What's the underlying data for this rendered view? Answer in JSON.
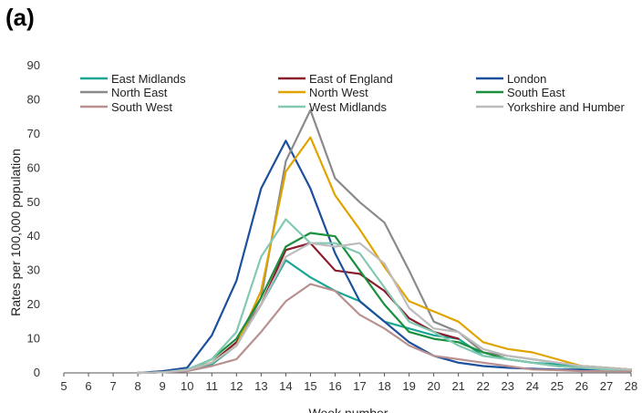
{
  "panel_label": "(a)",
  "chart_data": {
    "type": "line",
    "xlabel": "Week number",
    "ylabel": "Rates per 100,000 population",
    "xlim": [
      5,
      28
    ],
    "ylim": [
      0,
      90
    ],
    "x_ticks": [
      5,
      6,
      7,
      8,
      9,
      10,
      11,
      12,
      13,
      14,
      15,
      16,
      17,
      18,
      19,
      20,
      21,
      22,
      23,
      24,
      25,
      26,
      27,
      28
    ],
    "y_ticks": [
      0,
      10,
      20,
      30,
      40,
      50,
      60,
      70,
      80,
      90
    ],
    "grid": false,
    "legend_position": "top",
    "series": [
      {
        "name": "East Midlands",
        "color": "#1aa694",
        "x": [
          8,
          9,
          10,
          11,
          12,
          13,
          14,
          15,
          16,
          17,
          18,
          19,
          20,
          21,
          22,
          23,
          24,
          25,
          26,
          27,
          28
        ],
        "y": [
          0,
          0.2,
          0.8,
          2.5,
          8,
          20,
          33,
          28,
          24,
          21,
          15,
          13,
          11,
          10,
          5,
          4,
          3,
          2.5,
          2,
          1.5,
          1
        ]
      },
      {
        "name": "East of England",
        "color": "#8b1a2b",
        "x": [
          8,
          9,
          10,
          11,
          12,
          13,
          14,
          15,
          16,
          17,
          18,
          19,
          20,
          21
        ],
        "y": [
          0,
          0.2,
          0.8,
          3,
          9,
          20,
          36,
          38,
          30,
          29,
          24,
          16,
          12,
          10
        ]
      },
      {
        "name": "London",
        "color": "#1c4f9c",
        "x": [
          8,
          9,
          10,
          11,
          12,
          13,
          14,
          15,
          16,
          17,
          18,
          19,
          20,
          21,
          22,
          23,
          24,
          25,
          26,
          27,
          28
        ],
        "y": [
          0,
          0.5,
          1.5,
          11,
          27,
          54,
          68,
          54,
          35,
          21,
          15,
          9,
          5,
          3,
          2,
          1.5,
          1.2,
          1,
          1,
          0.8,
          0.5
        ]
      },
      {
        "name": "North East",
        "color": "#8a8a8a",
        "x": [
          8,
          9,
          10,
          11,
          12,
          13,
          14,
          15,
          16,
          17,
          18,
          19,
          20,
          21,
          22,
          23,
          24,
          25,
          26,
          27,
          28
        ],
        "y": [
          0,
          0.2,
          0.8,
          3,
          8,
          22,
          62,
          77,
          57,
          50,
          44,
          30,
          15,
          12,
          6,
          5,
          4,
          3,
          2,
          1.5,
          1
        ]
      },
      {
        "name": "North West",
        "color": "#e0a400",
        "x": [
          8,
          9,
          10,
          11,
          12,
          13,
          14,
          15,
          16,
          17,
          18,
          19,
          20,
          21,
          22,
          23,
          24,
          25,
          26,
          27,
          28
        ],
        "y": [
          0,
          0.2,
          0.8,
          3,
          8,
          24,
          59,
          69,
          52,
          42,
          31,
          21,
          18,
          15,
          9,
          7,
          6,
          4,
          2,
          1.5,
          1
        ]
      },
      {
        "name": "South East",
        "color": "#1a8f3e",
        "x": [
          8,
          9,
          10,
          11,
          12,
          13,
          14,
          15,
          16,
          17,
          18,
          19,
          20,
          21,
          22,
          23,
          24,
          25,
          26,
          27,
          28
        ],
        "y": [
          0,
          0.2,
          0.8,
          4,
          10,
          22,
          37,
          41,
          40,
          30,
          20,
          12,
          10,
          9,
          6,
          4,
          3,
          2,
          1.5,
          1,
          1
        ]
      },
      {
        "name": "South West",
        "color": "#b89090",
        "x": [
          8,
          9,
          10,
          11,
          12,
          13,
          14,
          15,
          16,
          17,
          18,
          19,
          20,
          21,
          22,
          23,
          24,
          25,
          26,
          27,
          28
        ],
        "y": [
          0,
          0.2,
          0.5,
          2,
          4,
          12,
          21,
          26,
          24,
          17,
          13,
          8,
          5,
          4,
          3,
          2,
          1,
          0.8,
          0.5,
          0.5,
          0.5
        ]
      },
      {
        "name": "West Midlands",
        "color": "#82c8b2",
        "x": [
          8,
          9,
          10,
          11,
          12,
          13,
          14,
          15,
          16,
          17,
          18,
          19,
          20,
          21,
          22,
          23,
          24,
          25,
          26,
          27,
          28
        ],
        "y": [
          0,
          0.2,
          1,
          4,
          12,
          34,
          45,
          38,
          38,
          35,
          25,
          15,
          12,
          8,
          5,
          4,
          3,
          2,
          1.5,
          1,
          1
        ]
      },
      {
        "name": "Yorkshire and Humber",
        "color": "#bcbcbc",
        "x": [
          8,
          9,
          10,
          11,
          12,
          13,
          14,
          15,
          16,
          17,
          18,
          19,
          20,
          21,
          22,
          23,
          24,
          25,
          26,
          27,
          28
        ],
        "y": [
          0,
          0.2,
          0.8,
          3,
          8,
          20,
          34,
          38,
          37,
          38,
          32,
          19,
          13,
          12,
          7,
          5,
          4,
          3,
          2,
          1.5,
          1
        ]
      }
    ]
  }
}
